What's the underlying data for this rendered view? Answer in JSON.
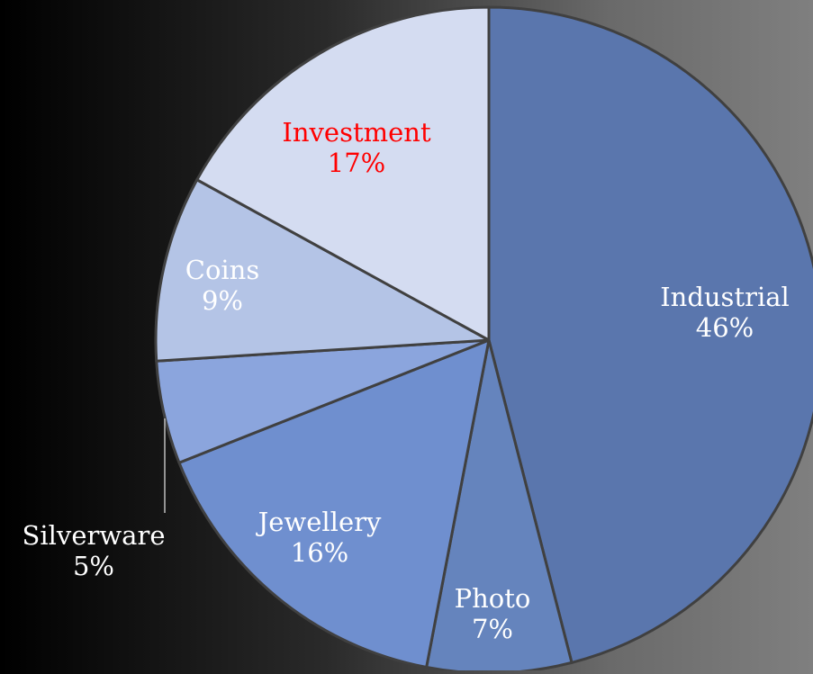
{
  "chart_data": {
    "type": "pie",
    "title": "",
    "slices": [
      {
        "label": "Industrial",
        "value": 46,
        "value_label": "46%",
        "color": "#5a76ad",
        "label_color": "#ffffff"
      },
      {
        "label": "Photo",
        "value": 7,
        "value_label": "7%",
        "color": "#6584bd",
        "label_color": "#ffffff"
      },
      {
        "label": "Jewellery",
        "value": 16,
        "value_label": "16%",
        "color": "#6f8fcf",
        "label_color": "#ffffff"
      },
      {
        "label": "Silverware",
        "value": 5,
        "value_label": "5%",
        "color": "#8ba5dd",
        "label_color": "#ffffff"
      },
      {
        "label": "Coins",
        "value": 9,
        "value_label": "9%",
        "color": "#b4c4e6",
        "label_color": "#ffffff"
      },
      {
        "label": "Investment",
        "value": 17,
        "value_label": "17%",
        "color": "#d4dcf1",
        "label_color": "#ff0000"
      }
    ],
    "start_angle_deg": 0,
    "direction": "clockwise",
    "border_color": "#404040"
  }
}
